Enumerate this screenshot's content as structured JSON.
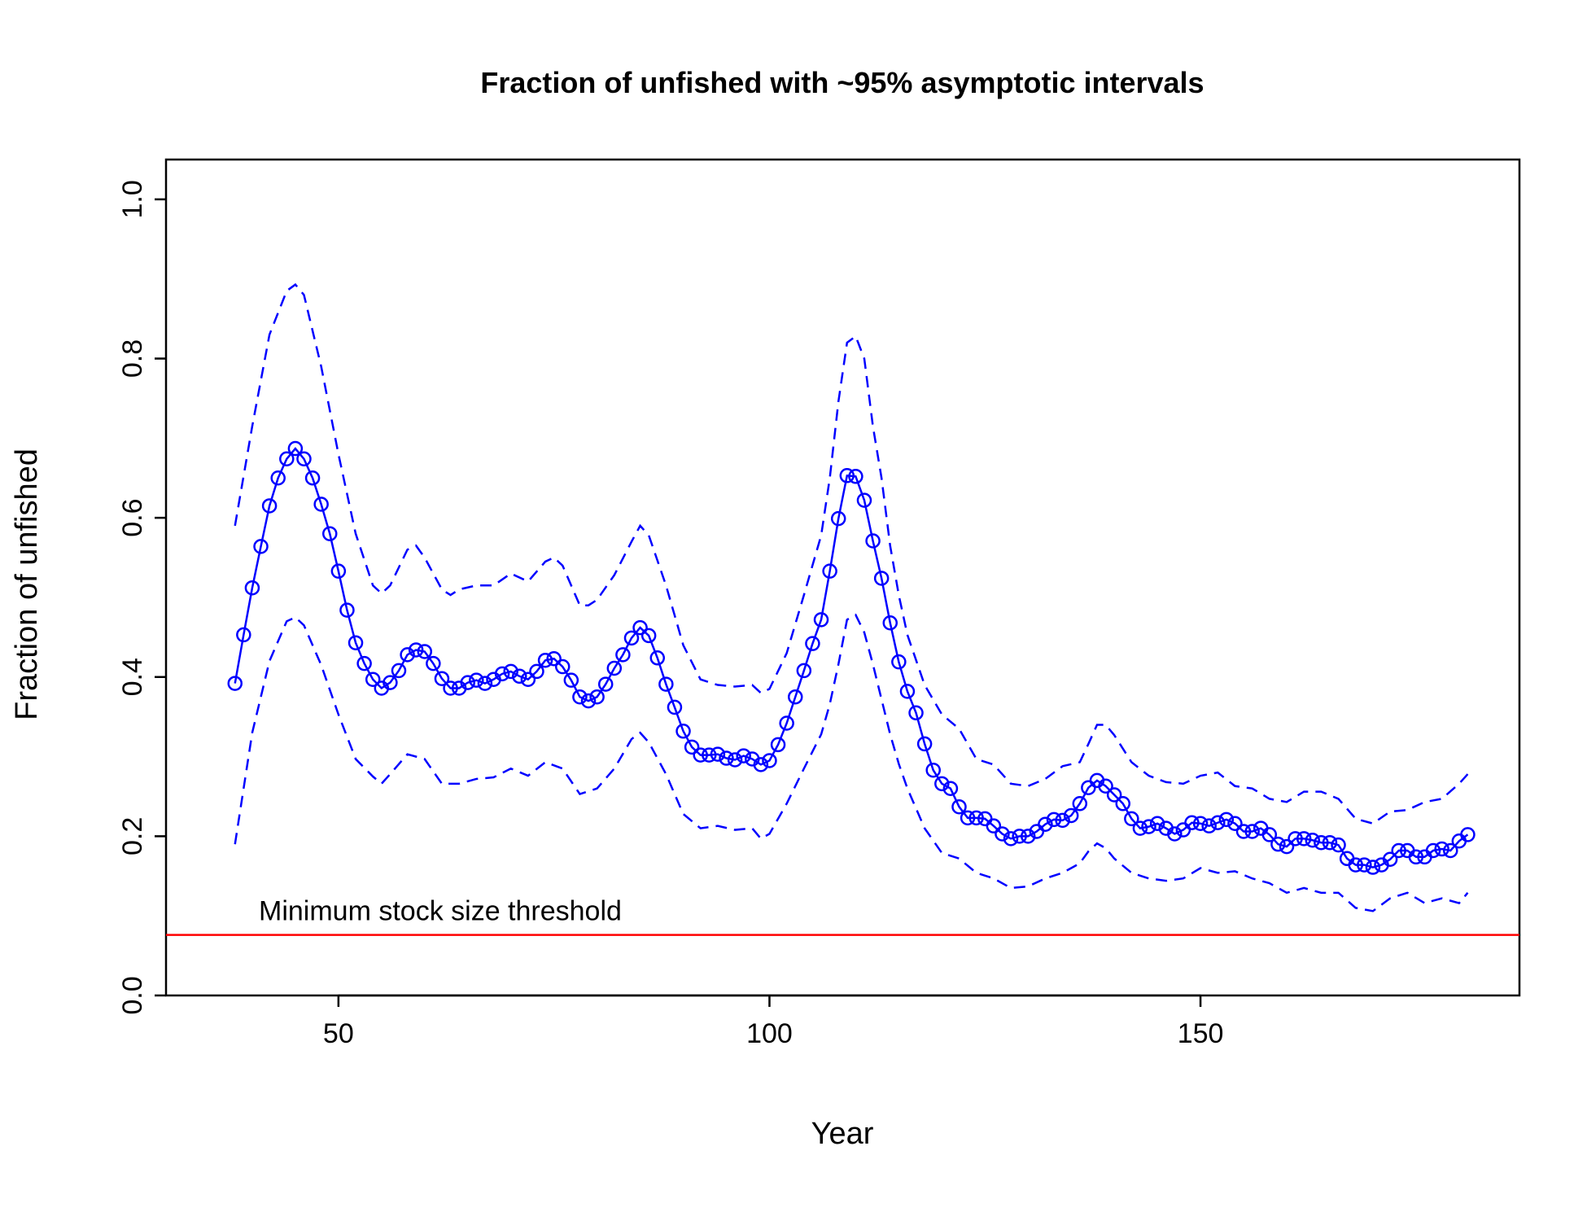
{
  "chart_data": {
    "type": "line",
    "title": "Fraction of unfished with ~95% asymptotic intervals",
    "xlabel": "Year",
    "ylabel": "Fraction of unfished",
    "xlim": [
      30,
      187
    ],
    "xticks": [
      50,
      100,
      150
    ],
    "ylim": [
      0,
      1.05
    ],
    "yticks": [
      {
        "value": 0,
        "label": "0.0"
      },
      0.2,
      0.4,
      0.6,
      0.8,
      {
        "value": 1,
        "label": "1.0"
      }
    ],
    "series": [
      {
        "color": "#0000ff",
        "dashed": false,
        "markers": true,
        "x": [
          38,
          39,
          40,
          41,
          42,
          43,
          44,
          45,
          46,
          47,
          48,
          49,
          50,
          51,
          52,
          53,
          54,
          55,
          56,
          57,
          58,
          59,
          60,
          61,
          62,
          63,
          64,
          65,
          66,
          67,
          68,
          69,
          70,
          71,
          72,
          73,
          74,
          75,
          76,
          77,
          78,
          79,
          80,
          81,
          82,
          83,
          84,
          85,
          86,
          87,
          88,
          89,
          90,
          91,
          92,
          93,
          94,
          95,
          96,
          97,
          98,
          99,
          100,
          101,
          102,
          103,
          104,
          105,
          106,
          107,
          108,
          109,
          110,
          111,
          112,
          113,
          114,
          115,
          116,
          117,
          118,
          119,
          120,
          121,
          122,
          123,
          124,
          125,
          126,
          127,
          128,
          129,
          130,
          131,
          132,
          133,
          134,
          135,
          136,
          137,
          138,
          139,
          140,
          141,
          142,
          143,
          144,
          145,
          146,
          147,
          148,
          149,
          150,
          151,
          152,
          153,
          154,
          155,
          156,
          157,
          158,
          159,
          160,
          161,
          162,
          163,
          164,
          165,
          166,
          167,
          168,
          169,
          170,
          171,
          172,
          173,
          174,
          175,
          176,
          177,
          178,
          179,
          180,
          181
        ],
        "values": [
          0.392,
          0.453,
          0.512,
          0.564,
          0.615,
          0.65,
          0.674,
          0.687,
          0.674,
          0.65,
          0.617,
          0.58,
          0.533,
          0.484,
          0.443,
          0.417,
          0.397,
          0.386,
          0.393,
          0.408,
          0.428,
          0.434,
          0.432,
          0.417,
          0.398,
          0.386,
          0.386,
          0.393,
          0.396,
          0.392,
          0.397,
          0.404,
          0.407,
          0.401,
          0.397,
          0.407,
          0.421,
          0.423,
          0.413,
          0.396,
          0.375,
          0.37,
          0.375,
          0.391,
          0.411,
          0.428,
          0.449,
          0.462,
          0.452,
          0.424,
          0.391,
          0.362,
          0.332,
          0.312,
          0.302,
          0.302,
          0.303,
          0.298,
          0.296,
          0.301,
          0.297,
          0.29,
          0.295,
          0.315,
          0.342,
          0.375,
          0.408,
          0.442,
          0.472,
          0.533,
          0.599,
          0.653,
          0.652,
          0.622,
          0.571,
          0.524,
          0.468,
          0.419,
          0.382,
          0.355,
          0.316,
          0.283,
          0.266,
          0.26,
          0.237,
          0.223,
          0.223,
          0.222,
          0.213,
          0.203,
          0.197,
          0.2,
          0.2,
          0.206,
          0.215,
          0.221,
          0.22,
          0.226,
          0.241,
          0.261,
          0.27,
          0.263,
          0.252,
          0.241,
          0.222,
          0.21,
          0.212,
          0.216,
          0.21,
          0.203,
          0.208,
          0.217,
          0.216,
          0.213,
          0.217,
          0.221,
          0.216,
          0.206,
          0.206,
          0.21,
          0.202,
          0.19,
          0.187,
          0.197,
          0.197,
          0.195,
          0.192,
          0.192,
          0.189,
          0.172,
          0.164,
          0.164,
          0.161,
          0.164,
          0.171,
          0.182,
          0.182,
          0.174,
          0.174,
          0.182,
          0.184,
          0.182,
          0.194,
          0.202
        ]
      },
      {
        "color": "#0000ff",
        "dashed": true,
        "markers": false,
        "x": [
          38,
          40,
          42,
          44,
          45,
          46,
          48,
          50,
          52,
          54,
          55,
          56,
          58,
          59,
          60,
          62,
          63,
          64,
          66,
          68,
          70,
          72,
          74,
          75,
          76,
          78,
          79,
          80,
          82,
          84,
          85,
          86,
          88,
          90,
          92,
          94,
          96,
          98,
          99,
          100,
          102,
          104,
          106,
          107,
          108,
          109,
          110,
          111,
          112,
          113,
          114,
          115,
          116,
          118,
          120,
          122,
          124,
          126,
          128,
          130,
          132,
          134,
          136,
          137,
          138,
          139,
          140,
          142,
          144,
          146,
          148,
          150,
          152,
          154,
          156,
          158,
          160,
          162,
          164,
          166,
          168,
          170,
          172,
          174,
          176,
          178,
          180,
          181
        ],
        "values": [
          0.59,
          0.715,
          0.83,
          0.885,
          0.893,
          0.88,
          0.79,
          0.68,
          0.58,
          0.515,
          0.505,
          0.515,
          0.56,
          0.565,
          0.55,
          0.51,
          0.503,
          0.51,
          0.515,
          0.515,
          0.53,
          0.52,
          0.545,
          0.55,
          0.54,
          0.49,
          0.49,
          0.497,
          0.528,
          0.57,
          0.59,
          0.578,
          0.515,
          0.44,
          0.397,
          0.39,
          0.388,
          0.39,
          0.38,
          0.385,
          0.43,
          0.503,
          0.578,
          0.65,
          0.746,
          0.82,
          0.828,
          0.8,
          0.715,
          0.65,
          0.565,
          0.503,
          0.453,
          0.39,
          0.353,
          0.335,
          0.297,
          0.29,
          0.266,
          0.263,
          0.272,
          0.288,
          0.293,
          0.316,
          0.34,
          0.34,
          0.327,
          0.293,
          0.276,
          0.268,
          0.266,
          0.276,
          0.28,
          0.263,
          0.26,
          0.247,
          0.243,
          0.256,
          0.256,
          0.247,
          0.222,
          0.216,
          0.231,
          0.233,
          0.243,
          0.247,
          0.266,
          0.278
        ]
      },
      {
        "color": "#0000ff",
        "dashed": true,
        "markers": false,
        "x": [
          38,
          40,
          42,
          44,
          45,
          46,
          48,
          50,
          52,
          54,
          55,
          56,
          58,
          60,
          62,
          64,
          66,
          68,
          70,
          72,
          74,
          76,
          78,
          80,
          82,
          84,
          85,
          86,
          88,
          90,
          92,
          94,
          96,
          98,
          99,
          100,
          102,
          104,
          106,
          107,
          108,
          109,
          110,
          111,
          112,
          113,
          114,
          115,
          116,
          118,
          120,
          122,
          124,
          126,
          128,
          130,
          132,
          134,
          136,
          137,
          138,
          139,
          140,
          142,
          144,
          146,
          148,
          150,
          152,
          154,
          156,
          158,
          160,
          162,
          164,
          166,
          168,
          170,
          172,
          174,
          176,
          178,
          180,
          181
        ],
        "values": [
          0.19,
          0.33,
          0.42,
          0.47,
          0.475,
          0.465,
          0.415,
          0.353,
          0.297,
          0.275,
          0.266,
          0.278,
          0.303,
          0.297,
          0.266,
          0.266,
          0.272,
          0.274,
          0.285,
          0.276,
          0.293,
          0.285,
          0.253,
          0.26,
          0.285,
          0.322,
          0.33,
          0.318,
          0.278,
          0.228,
          0.21,
          0.213,
          0.208,
          0.21,
          0.197,
          0.203,
          0.241,
          0.285,
          0.328,
          0.366,
          0.416,
          0.472,
          0.478,
          0.456,
          0.416,
          0.372,
          0.328,
          0.291,
          0.26,
          0.21,
          0.179,
          0.172,
          0.154,
          0.147,
          0.135,
          0.137,
          0.147,
          0.154,
          0.166,
          0.181,
          0.191,
          0.185,
          0.172,
          0.154,
          0.147,
          0.144,
          0.147,
          0.16,
          0.154,
          0.156,
          0.147,
          0.141,
          0.129,
          0.135,
          0.129,
          0.129,
          0.11,
          0.106,
          0.122,
          0.129,
          0.116,
          0.122,
          0.116,
          0.129
        ]
      }
    ],
    "hline": {
      "value": 0.076,
      "color": "#ff0000",
      "label": "Minimum stock size threshold"
    }
  }
}
